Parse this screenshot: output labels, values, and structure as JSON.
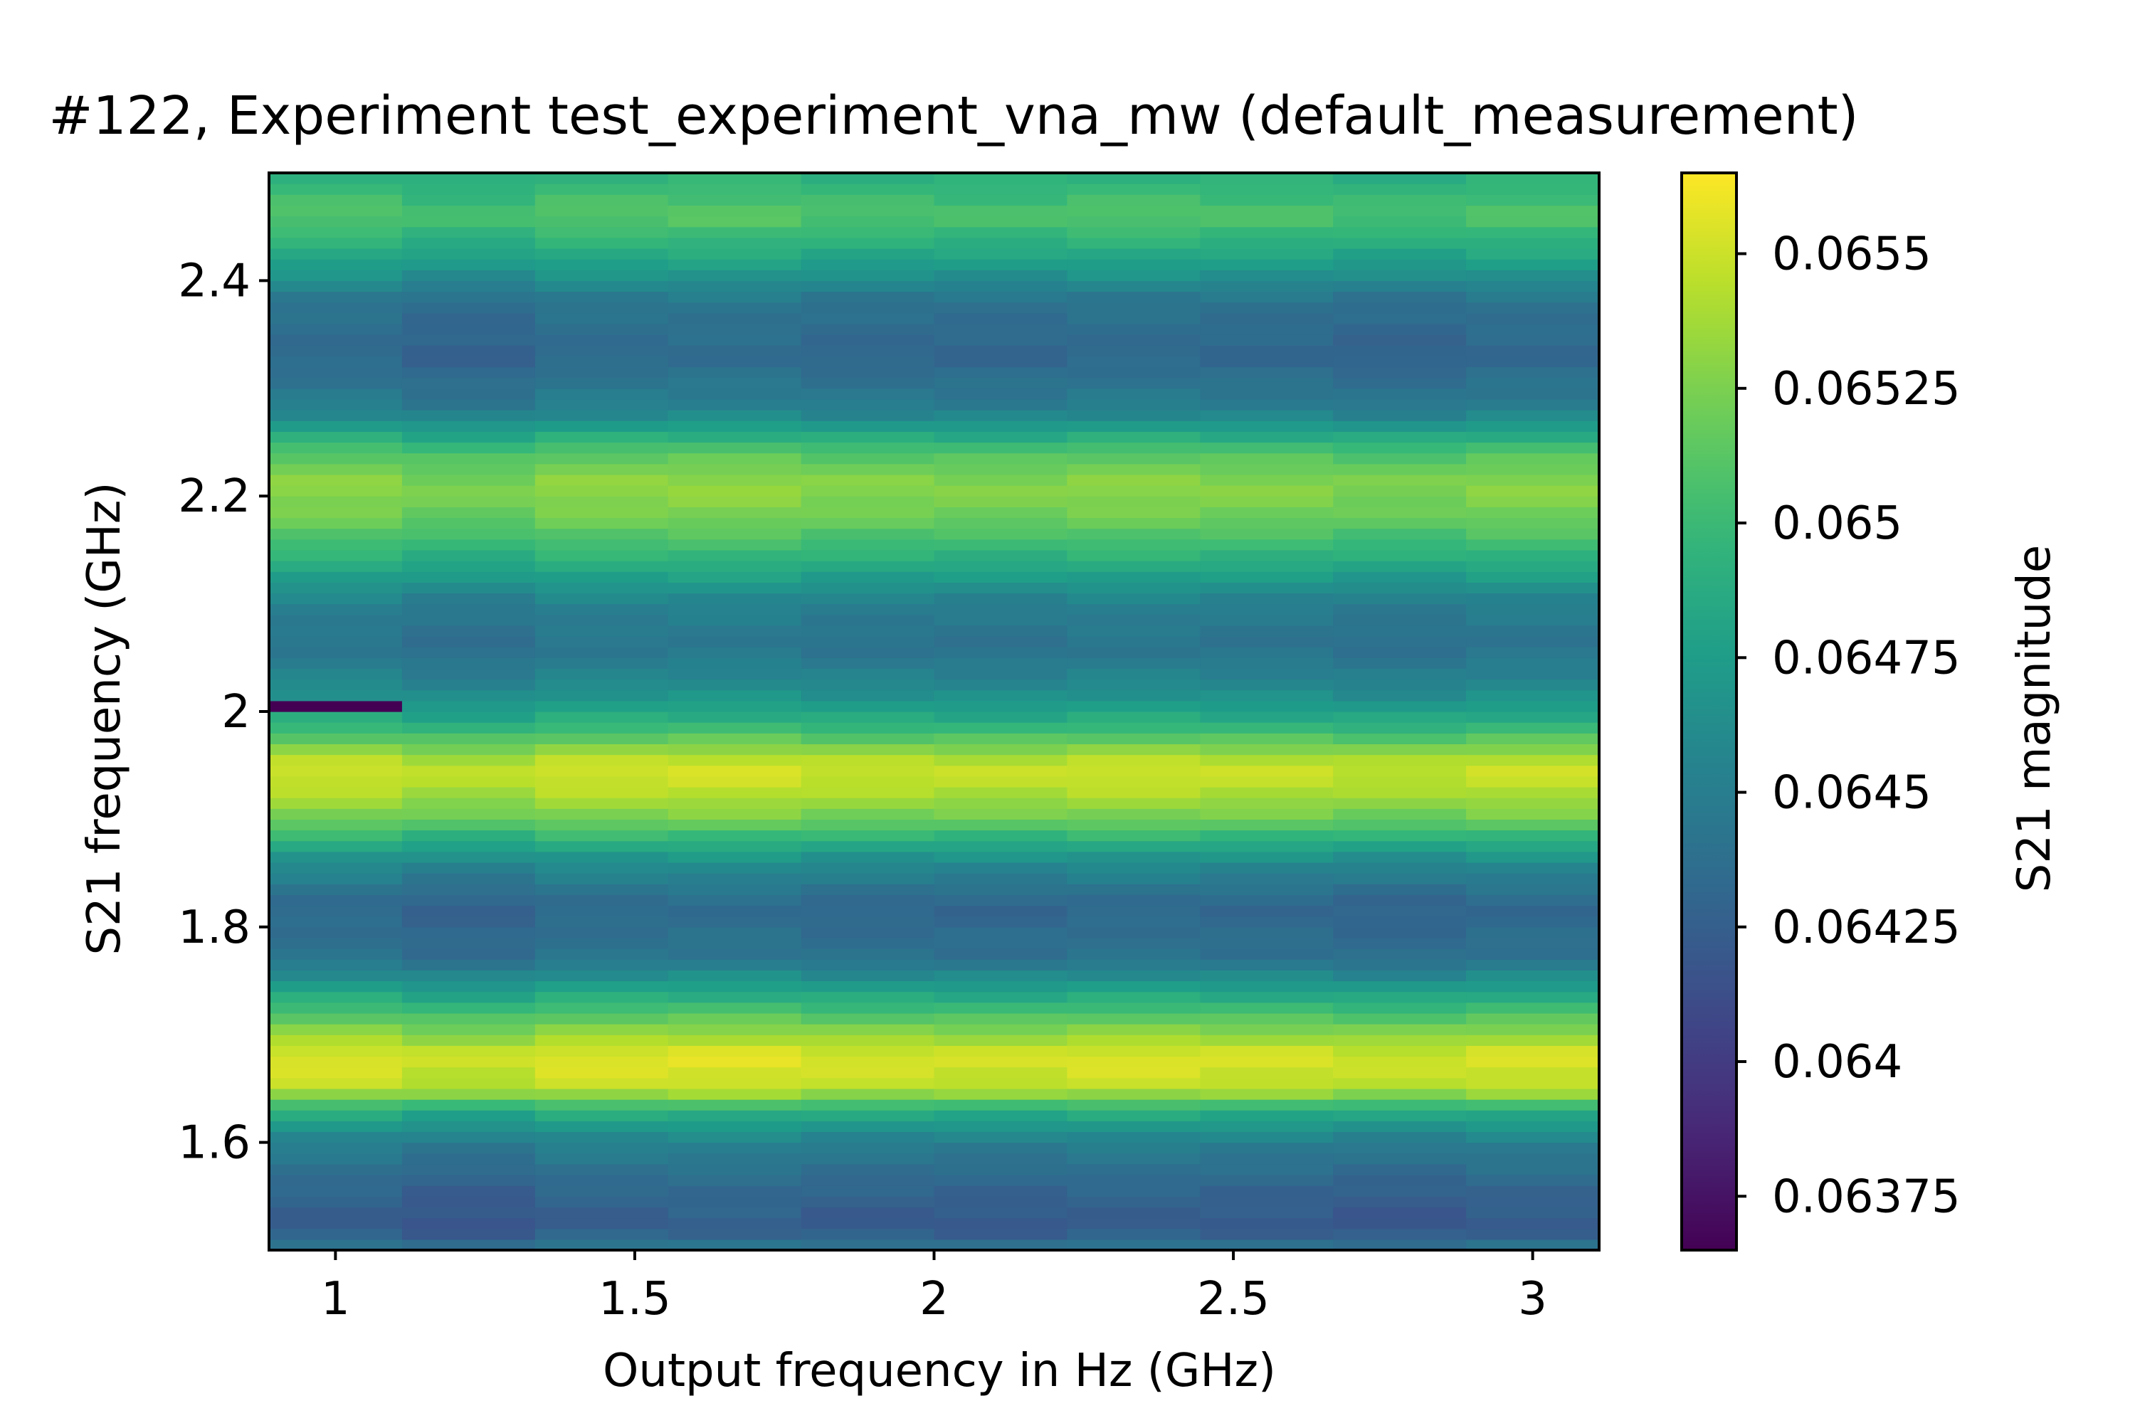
{
  "chart_data": {
    "type": "heatmap",
    "title": "#122, Experiment test_experiment_vna_mw (default_measurement)",
    "xlabel": "Output frequency in Hz (GHz)",
    "ylabel": "S21 frequency (GHz)",
    "colorbar_label": "S21 magnitude",
    "colormap": "viridis",
    "xlim": [
      0.889,
      3.111
    ],
    "ylim": [
      1.5,
      2.5
    ],
    "clim": [
      0.06365,
      0.06565
    ],
    "x_centers": [
      1.0,
      1.222,
      1.444,
      1.667,
      1.889,
      2.111,
      2.333,
      2.556,
      2.778,
      3.0
    ],
    "x_ticks": [
      1,
      1.5,
      2,
      2.5,
      3
    ],
    "x_tick_labels": [
      "1",
      "1.5",
      "2",
      "2.5",
      "3"
    ],
    "y_ticks": [
      1.6,
      1.8,
      2.0,
      2.2,
      2.4
    ],
    "y_tick_labels": [
      "1.6",
      "1.8",
      "2",
      "2.2",
      "2.4"
    ],
    "c_ticks": [
      0.06375,
      0.064,
      0.06425,
      0.0645,
      0.06475,
      0.065,
      0.06525,
      0.0655
    ],
    "c_tick_labels": [
      "0.06375",
      "0.064",
      "0.06425",
      "0.0645",
      "0.06475",
      "0.065",
      "0.06525",
      "0.0655"
    ],
    "y_steps": 100,
    "profile": {
      "y": [
        1.5,
        1.52,
        1.56,
        1.6,
        1.63,
        1.65,
        1.68,
        1.71,
        1.74,
        1.77,
        1.82,
        1.86,
        1.9,
        1.93,
        1.95,
        1.97,
        1.99,
        2.02,
        2.06,
        2.1,
        2.14,
        2.18,
        2.21,
        2.24,
        2.28,
        2.33,
        2.38,
        2.42,
        2.46,
        2.5
      ],
      "value": [
        0.06445,
        0.0642,
        0.0643,
        0.0645,
        0.0649,
        0.06545,
        0.06555,
        0.0652,
        0.0648,
        0.0644,
        0.0643,
        0.0646,
        0.0652,
        0.06545,
        0.0655,
        0.0652,
        0.0649,
        0.0646,
        0.0644,
        0.0645,
        0.0649,
        0.0652,
        0.0653,
        0.0651,
        0.0645,
        0.0643,
        0.0644,
        0.0648,
        0.0651,
        0.0649
      ]
    },
    "column_offsets": [
      2e-05,
      -4e-05,
      3e-05,
      4e-05,
      0.0,
      -1e-05,
      2e-05,
      0.0,
      -3e-05,
      1e-05
    ],
    "anomalies": [
      {
        "x": 1.0,
        "y": 2.0,
        "value": 0.06365
      }
    ]
  }
}
